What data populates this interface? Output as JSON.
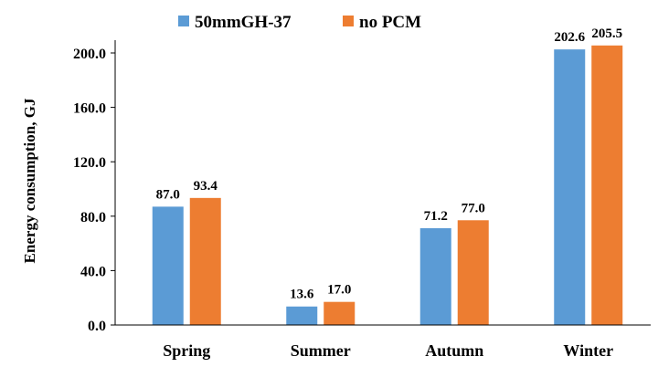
{
  "chart_data": {
    "type": "bar",
    "title": "",
    "xlabel": "",
    "ylabel": "Energy consumption, GJ",
    "ylim": [
      0,
      200
    ],
    "yticks": [
      "0.0",
      "40.0",
      "80.0",
      "120.0",
      "160.0",
      "200.0"
    ],
    "categories": [
      "Spring",
      "Summer",
      "Autumn",
      "Winter"
    ],
    "legend_position": "top-center",
    "series": [
      {
        "name": "50mmGH-37",
        "color": "#5B9BD5",
        "values": [
          87.0,
          13.6,
          71.2,
          202.6
        ],
        "labels": [
          "87.0",
          "13.6",
          "71.2",
          "202.6"
        ]
      },
      {
        "name": "no PCM",
        "color": "#ED7D31",
        "values": [
          93.4,
          17.0,
          77.0,
          205.5
        ],
        "labels": [
          "93.4",
          "17.0",
          "77.0",
          "205.5"
        ]
      }
    ]
  }
}
